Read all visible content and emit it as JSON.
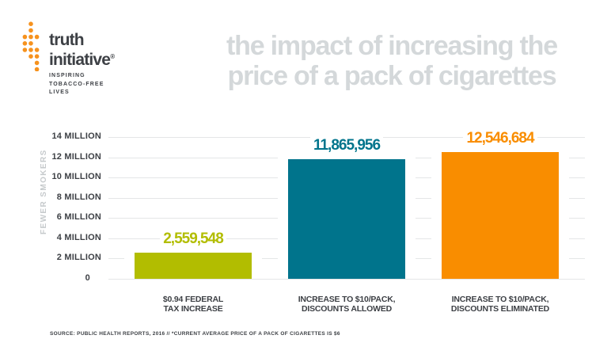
{
  "logo": {
    "name_line1": "truth",
    "name_line2": "initiative",
    "registered_mark": "®",
    "tagline_lines": [
      "INSPIRING",
      "TOBACCO-FREE",
      "LIVES"
    ]
  },
  "title": {
    "line1": "the impact of increasing the",
    "line2": "price of a pack of cigarettes"
  },
  "chart_data": {
    "type": "bar",
    "title": "the impact of increasing the price of a pack of cigarettes",
    "ylabel": "FEWER SMOKERS",
    "xlabel": "",
    "ylim": [
      0,
      14000000
    ],
    "grid": true,
    "yticks": [
      "14 MILLION",
      "12 MILLION",
      "10 MILLION",
      "8 MILLION",
      "6 MILLION",
      "4 MILLION",
      "2 MILLION",
      "0"
    ],
    "ytick_values": [
      14000000,
      12000000,
      10000000,
      8000000,
      6000000,
      4000000,
      2000000,
      0
    ],
    "categories": [
      [
        "$0.94 FEDERAL",
        "TAX INCREASE"
      ],
      [
        "INCREASE TO $10/PACK,",
        "DISCOUNTS ALLOWED"
      ],
      [
        "INCREASE TO $10/PACK,",
        "DISCOUNTS ELIMINATED"
      ]
    ],
    "values": [
      2559548,
      11865956,
      12546684
    ],
    "value_labels": [
      "2,559,548",
      "11,865,956",
      "12,546,684"
    ],
    "bar_colors": [
      "#b2bd00",
      "#00748c",
      "#f98d00"
    ]
  },
  "source": "SOURCE: PUBLIC HEALTH REPORTS, 2016 // *CURRENT AVERAGE PRICE OF A PACK OF CIGARETTES IS $6",
  "colors": {
    "brand_orange": "#f6921e",
    "dark_text": "#3d4045",
    "title_gray": "#d4d8da",
    "gridline": "#e4e6e7",
    "axis_muted": "#c6cacc",
    "background": "#ffffff"
  }
}
